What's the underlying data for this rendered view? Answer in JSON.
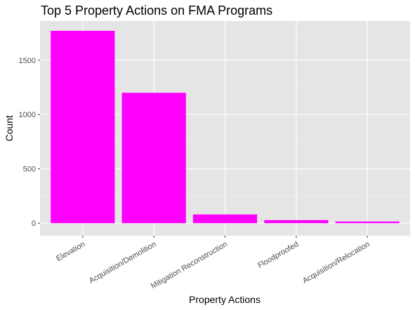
{
  "chart_data": {
    "type": "bar",
    "title": "Top 5 Property Actions on FMA Programs",
    "xlabel": "Property Actions",
    "ylabel": "Count",
    "categories": [
      "Elevation",
      "Acquisition/Demolition",
      "Mitigation Reconstruction",
      "Floodproofed",
      "Acquisition/Relocation"
    ],
    "values": [
      1770,
      1200,
      80,
      28,
      15
    ],
    "ylim": [
      -115,
      1860
    ],
    "yticks": [
      0,
      500,
      1000,
      1500
    ],
    "bar_color": "#FF00FF",
    "panel_color": "#E5E5E5",
    "grid": true,
    "legend": "none"
  }
}
